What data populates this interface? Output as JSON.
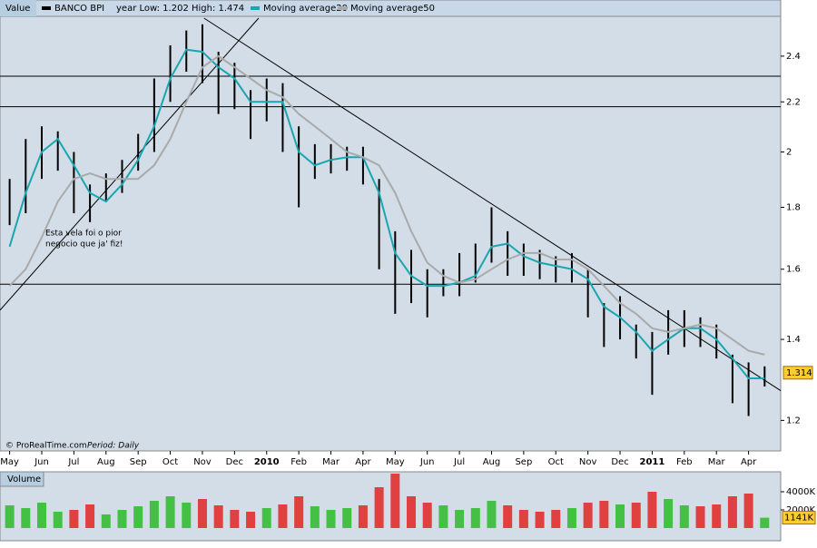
{
  "chart_data": [
    {
      "type": "ohlc",
      "header": {
        "label": "Value",
        "instrument": "BANCO BPI",
        "range_text": "year Low: 1.202 High: 1.474"
      },
      "footer": {
        "source": "© ProRealTime.com",
        "period": "Period: Daily"
      },
      "annotation": [
        "Esta vela foi o pior",
        "negocio que ja' fiz!"
      ],
      "log_scale": true,
      "xlim": [
        -0.6,
        48
      ],
      "xticks": [
        {
          "value": 0,
          "label": "May"
        },
        {
          "value": 2,
          "label": "Jun"
        },
        {
          "value": 4,
          "label": "Jul"
        },
        {
          "value": 6,
          "label": "Aug"
        },
        {
          "value": 8,
          "label": "Sep"
        },
        {
          "value": 10,
          "label": "Oct"
        },
        {
          "value": 12,
          "label": "Nov"
        },
        {
          "value": 14,
          "label": "Dec"
        },
        {
          "value": 16,
          "label": "2010"
        },
        {
          "value": 18,
          "label": "Feb"
        },
        {
          "value": 20,
          "label": "Mar"
        },
        {
          "value": 22,
          "label": "Apr"
        },
        {
          "value": 24,
          "label": "May"
        },
        {
          "value": 26,
          "label": "Jun"
        },
        {
          "value": 28,
          "label": "Jul"
        },
        {
          "value": 30,
          "label": "Aug"
        },
        {
          "value": 32,
          "label": "Sep"
        },
        {
          "value": 34,
          "label": "Oct"
        },
        {
          "value": 36,
          "label": "Nov"
        },
        {
          "value": 38,
          "label": "Dec"
        },
        {
          "value": 40,
          "label": "2011"
        },
        {
          "value": 42,
          "label": "Feb"
        },
        {
          "value": 44,
          "label": "Mar"
        },
        {
          "value": 46,
          "label": "Apr"
        }
      ],
      "ylim": [
        1.16,
        2.58
      ],
      "yticks": [
        1.2,
        1.4,
        1.6,
        1.8,
        2,
        2.2,
        2.4
      ],
      "x": [
        0,
        1,
        2,
        3,
        4,
        5,
        6,
        7,
        8,
        9,
        10,
        11,
        12,
        13,
        14,
        15,
        16,
        17,
        18,
        19,
        20,
        21,
        22,
        23,
        24,
        25,
        26,
        27,
        28,
        29,
        30,
        31,
        32,
        33,
        34,
        35,
        36,
        37,
        38,
        39,
        40,
        41,
        42,
        43,
        44,
        45,
        46,
        47
      ],
      "series": [
        {
          "name": "BANCO BPI",
          "color": "#000000",
          "high": [
            1.9,
            2.05,
            2.1,
            2.08,
            2.0,
            1.88,
            1.92,
            1.97,
            2.07,
            2.3,
            2.45,
            2.52,
            2.55,
            2.42,
            2.37,
            2.25,
            2.3,
            2.28,
            2.1,
            2.03,
            2.03,
            2.02,
            2.02,
            1.9,
            1.72,
            1.66,
            1.6,
            1.6,
            1.65,
            1.68,
            1.8,
            1.72,
            1.68,
            1.66,
            1.64,
            1.65,
            1.6,
            1.5,
            1.52,
            1.44,
            1.42,
            1.48,
            1.48,
            1.46,
            1.44,
            1.36,
            1.34,
            1.33
          ],
          "low": [
            1.74,
            1.78,
            1.9,
            1.93,
            1.78,
            1.75,
            1.82,
            1.85,
            1.93,
            2.0,
            2.2,
            2.33,
            2.28,
            2.15,
            2.17,
            2.05,
            2.12,
            2.0,
            1.8,
            1.9,
            1.92,
            1.93,
            1.88,
            1.6,
            1.47,
            1.5,
            1.46,
            1.52,
            1.52,
            1.56,
            1.62,
            1.58,
            1.58,
            1.57,
            1.56,
            1.56,
            1.46,
            1.38,
            1.4,
            1.35,
            1.26,
            1.36,
            1.38,
            1.38,
            1.35,
            1.24,
            1.21,
            1.28
          ]
        },
        {
          "name": "Moving average20",
          "color": "#1aa6b0",
          "values": [
            1.67,
            1.85,
            2.0,
            2.05,
            1.95,
            1.85,
            1.82,
            1.88,
            1.97,
            2.1,
            2.3,
            2.43,
            2.42,
            2.35,
            2.3,
            2.2,
            2.2,
            2.2,
            2.0,
            1.95,
            1.97,
            1.98,
            1.98,
            1.85,
            1.65,
            1.58,
            1.55,
            1.55,
            1.56,
            1.58,
            1.67,
            1.68,
            1.64,
            1.62,
            1.61,
            1.6,
            1.57,
            1.49,
            1.46,
            1.42,
            1.37,
            1.4,
            1.43,
            1.43,
            1.4,
            1.35,
            1.3,
            1.3
          ]
        },
        {
          "name": "Moving average50",
          "color": "#aaaaaa",
          "values": [
            1.55,
            1.6,
            1.7,
            1.82,
            1.9,
            1.92,
            1.9,
            1.9,
            1.9,
            1.95,
            2.05,
            2.2,
            2.35,
            2.4,
            2.35,
            2.3,
            2.25,
            2.22,
            2.15,
            2.1,
            2.05,
            2.0,
            1.98,
            1.95,
            1.85,
            1.72,
            1.62,
            1.58,
            1.56,
            1.57,
            1.6,
            1.63,
            1.65,
            1.65,
            1.63,
            1.63,
            1.6,
            1.55,
            1.5,
            1.47,
            1.43,
            1.42,
            1.43,
            1.44,
            1.43,
            1.4,
            1.37,
            1.36
          ]
        }
      ],
      "last_price": 1.314,
      "hlines": [
        2.31,
        2.18,
        1.555
      ],
      "trendlines": [
        {
          "x": [
            -0.6,
            15.5
          ],
          "y": [
            1.48,
            2.58
          ]
        },
        {
          "x": [
            12.1,
            48
          ],
          "y": [
            2.58,
            1.27
          ]
        }
      ]
    },
    {
      "type": "volume",
      "title": "Volume",
      "ylim": [
        0,
        6000
      ],
      "yticks": [
        {
          "value": 2000,
          "label": "2000K"
        },
        {
          "value": 4000,
          "label": "4000K"
        }
      ],
      "values": [
        2500,
        2200,
        2800,
        1800,
        2000,
        2600,
        1500,
        2000,
        2400,
        3000,
        3500,
        2800,
        3200,
        2500,
        2000,
        1800,
        2200,
        2600,
        3500,
        2400,
        2000,
        2200,
        2500,
        4500,
        6000,
        3500,
        2800,
        2500,
        2000,
        2200,
        3000,
        2500,
        2000,
        1800,
        2000,
        2200,
        2800,
        3000,
        2600,
        2800,
        4000,
        3200,
        2500,
        2400,
        2600,
        3500,
        3800,
        1141
      ],
      "value_labels": {
        "47": "1141K"
      }
    }
  ]
}
